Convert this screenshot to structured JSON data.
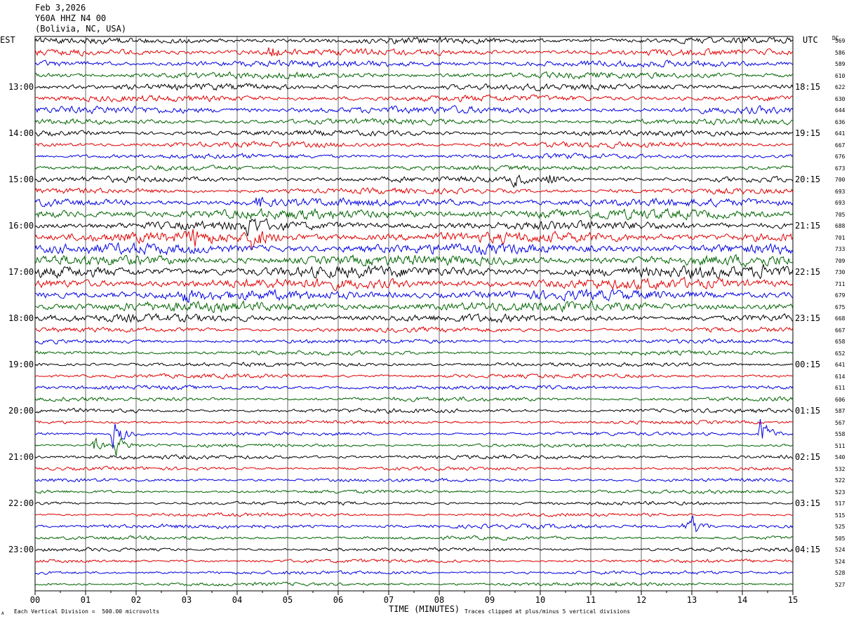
{
  "header": {
    "date": "Feb 3,2026",
    "station": "Y60A HHZ N4 00",
    "location": "(Bolivia, NC, USA)"
  },
  "left_zone_label": "EST",
  "right_zone_label": "UTC",
  "dc_header": "DC",
  "footer": {
    "scale_note": "Each Vertical Division =  500.00 microvolts",
    "clip_note": "Traces clipped at plus/minus 5 vertical divisions",
    "corner_mark": "A"
  },
  "colors": {
    "trace_cycle": [
      "#000000",
      "#e00000",
      "#0000e0",
      "#006400"
    ],
    "grid": "#000000"
  },
  "chart_data": {
    "type": "line",
    "title": "Feb 3,2026 Y60A HHZ N4 00 (Bolivia, NC, USA)",
    "xlabel": "TIME (MINUTES)",
    "xlim": [
      0,
      15
    ],
    "x_ticks": [
      "00",
      "01",
      "02",
      "03",
      "04",
      "05",
      "06",
      "07",
      "08",
      "09",
      "10",
      "11",
      "12",
      "13",
      "14",
      "15"
    ],
    "row_minutes": 15,
    "left_hour_labels": [
      "13:00",
      "14:00",
      "15:00",
      "16:00",
      "17:00",
      "18:00",
      "19:00",
      "20:00",
      "21:00",
      "22:00",
      "23:00"
    ],
    "right_hour_labels": [
      "18:15",
      "19:15",
      "20:15",
      "21:15",
      "22:15",
      "23:15",
      "00:15",
      "01:15",
      "02:15",
      "03:15",
      "04:15"
    ],
    "dc_offsets": [
      569,
      586,
      589,
      610,
      622,
      630,
      644,
      636,
      641,
      667,
      676,
      673,
      700,
      693,
      693,
      705,
      688,
      701,
      733,
      709,
      730,
      711,
      679,
      675,
      668,
      667,
      658,
      652,
      641,
      614,
      611,
      606,
      587,
      567,
      558,
      511,
      540,
      532,
      522,
      523,
      517,
      515,
      525,
      505,
      524,
      524,
      528,
      527
    ],
    "row_amplitude_divisions": [
      0.9,
      0.9,
      0.9,
      0.9,
      0.9,
      0.9,
      1.0,
      0.8,
      0.8,
      0.8,
      0.7,
      0.7,
      0.8,
      0.8,
      1.1,
      1.4,
      1.3,
      1.5,
      1.5,
      1.5,
      1.6,
      1.5,
      1.4,
      1.4,
      1.1,
      0.7,
      0.6,
      0.6,
      0.6,
      0.6,
      0.6,
      0.6,
      0.6,
      0.5,
      0.5,
      0.5,
      0.6,
      0.5,
      0.5,
      0.5,
      0.5,
      0.5,
      0.6,
      0.5,
      0.5,
      0.5,
      0.5,
      0.5
    ],
    "events": [
      {
        "row": 1,
        "minute": 4.65,
        "amplitude": 2
      },
      {
        "row": 12,
        "minute": 9.45,
        "amplitude": 2.2
      },
      {
        "row": 12,
        "minute": 10.15,
        "amplitude": 2.5
      },
      {
        "row": 14,
        "minute": 4.4,
        "amplitude": 2
      },
      {
        "row": 16,
        "minute": 4.2,
        "amplitude": 3
      },
      {
        "row": 17,
        "minute": 4.3,
        "amplitude": 4
      },
      {
        "row": 17,
        "minute": 3.1,
        "amplitude": 2.5
      },
      {
        "row": 20,
        "minute": 15.0,
        "amplitude": 3
      },
      {
        "row": 20,
        "minute": 14.4,
        "amplitude": 2
      },
      {
        "row": 22,
        "minute": 2.9,
        "amplitude": 2
      },
      {
        "row": 34,
        "minute": 1.55,
        "amplitude": 5
      },
      {
        "row": 34,
        "minute": 14.35,
        "amplitude": 5
      },
      {
        "row": 35,
        "minute": 1.15,
        "amplitude": 2.5
      },
      {
        "row": 35,
        "minute": 1.6,
        "amplitude": 3
      },
      {
        "row": 42,
        "minute": 13.0,
        "amplitude": 3
      },
      {
        "row": 42,
        "minute": 12.8,
        "amplitude": 1.8
      }
    ]
  }
}
